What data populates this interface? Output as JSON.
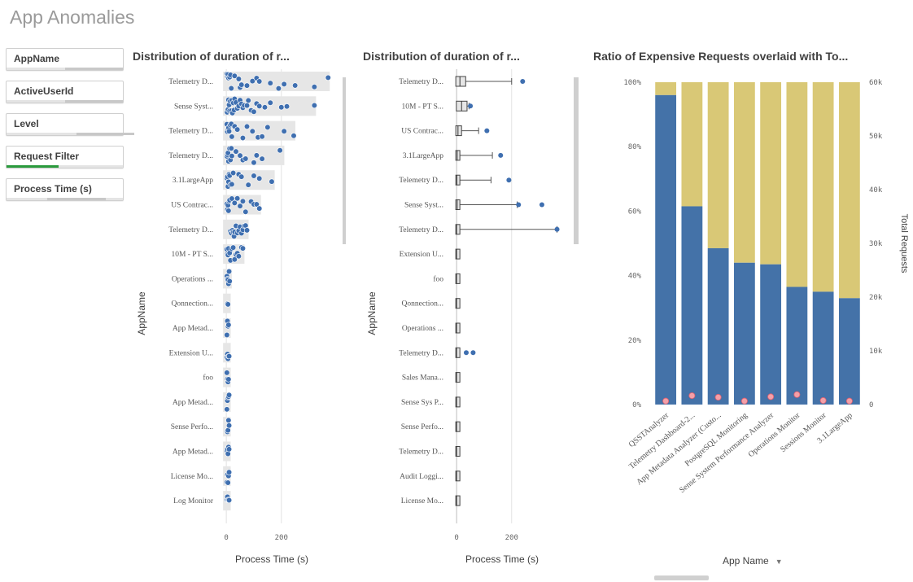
{
  "page": {
    "title": "App Anomalies"
  },
  "filters": [
    {
      "label": "AppName",
      "fill_pct": 0,
      "fill_color": "#cccccc"
    },
    {
      "label": "ActiveUserId",
      "fill_pct": 0,
      "fill_color": "#cccccc"
    },
    {
      "label": "Level",
      "fill_pct": 0,
      "fill_color": "#cccccc"
    },
    {
      "label": "Request Filter",
      "fill_pct": 45,
      "fill_color": "#2a9a3c"
    },
    {
      "label": "Process Time (s)",
      "fill_pct": 0,
      "fill_color": "#cccccc"
    }
  ],
  "charts": {
    "distribution": {
      "title": "Distribution of duration of r...",
      "ylabel": "AppName",
      "xlabel": "Process Time (s)",
      "x_ticks": [
        0,
        200
      ],
      "x_range": [
        -30,
        390
      ],
      "point_color": "#3f6fb0",
      "band_color": "#e6e6e6",
      "rows": [
        {
          "label": "Telemetry D...",
          "max": 370,
          "points": [
            2,
            4,
            6,
            8,
            12,
            15,
            18,
            30,
            45,
            50,
            55,
            75,
            95,
            110,
            120,
            160,
            190,
            210,
            250,
            320,
            370
          ]
        },
        {
          "label": "Sense Syst...",
          "max": 320,
          "points": [
            3,
            6,
            8,
            10,
            12,
            14,
            18,
            20,
            22,
            25,
            28,
            30,
            35,
            40,
            45,
            50,
            55,
            60,
            65,
            75,
            80,
            90,
            100,
            110,
            120,
            140,
            160,
            200,
            220,
            320
          ]
        },
        {
          "label": "Telemetry D...",
          "max": 245,
          "points": [
            2,
            4,
            6,
            8,
            10,
            14,
            18,
            20,
            30,
            40,
            60,
            75,
            95,
            115,
            130,
            150,
            210,
            245
          ]
        },
        {
          "label": "Telemetry D...",
          "max": 205,
          "points": [
            2,
            4,
            6,
            8,
            12,
            15,
            18,
            20,
            35,
            50,
            60,
            70,
            100,
            110,
            130,
            195
          ]
        },
        {
          "label": "3.1LargeApp",
          "max": 170,
          "points": [
            2,
            4,
            6,
            8,
            10,
            12,
            15,
            20,
            25,
            45,
            55,
            80,
            100,
            120,
            165
          ]
        },
        {
          "label": "US Contrac...",
          "max": 120,
          "points": [
            2,
            4,
            6,
            8,
            10,
            12,
            20,
            30,
            40,
            50,
            60,
            70,
            90,
            100,
            110,
            120
          ]
        },
        {
          "label": "Telemetry D...",
          "max": 75,
          "points": [
            15,
            18,
            22,
            25,
            28,
            30,
            35,
            40,
            45,
            50,
            55,
            60,
            65,
            70,
            75
          ]
        },
        {
          "label": "10M - PT S...",
          "max": 60,
          "points": [
            2,
            4,
            6,
            8,
            12,
            15,
            20,
            25,
            30,
            35,
            40,
            45,
            55,
            60
          ]
        },
        {
          "label": "Operations ...",
          "max": 14,
          "points": [
            2,
            4,
            6,
            8,
            10,
            12
          ]
        },
        {
          "label": "Qonnection...",
          "max": 10,
          "points": [
            2,
            4,
            6
          ]
        },
        {
          "label": "App Metad...",
          "max": 10,
          "points": [
            2,
            4,
            6,
            8
          ]
        },
        {
          "label": "Extension U...",
          "max": 10,
          "points": [
            2,
            4,
            6,
            8,
            10
          ]
        },
        {
          "label": "foo",
          "max": 10,
          "points": [
            2,
            4,
            6,
            8
          ]
        },
        {
          "label": "App Metad...",
          "max": 10,
          "points": [
            2,
            4,
            6,
            8,
            10
          ]
        },
        {
          "label": "Sense Perfo...",
          "max": 10,
          "points": [
            2,
            4,
            6,
            8,
            10
          ]
        },
        {
          "label": "App Metad...",
          "max": 10,
          "points": [
            2,
            4,
            6,
            8,
            10
          ]
        },
        {
          "label": "License Mo...",
          "max": 10,
          "points": [
            2,
            4,
            6,
            8,
            10
          ]
        },
        {
          "label": "Log Monitor",
          "max": 10,
          "points": [
            2,
            4,
            6,
            8,
            10
          ]
        }
      ]
    },
    "boxplot": {
      "title": "Distribution of duration of r...",
      "ylabel": "AppName",
      "xlabel": "Process Time (s)",
      "x_ticks": [
        0,
        200
      ],
      "x_range": [
        -30,
        390
      ],
      "point_color": "#3f6fb0",
      "rows": [
        {
          "label": "Telemetry D...",
          "min": 0,
          "q1": 0,
          "median": 12,
          "q3": 30,
          "max": 200,
          "outliers": [
            240
          ]
        },
        {
          "label": "10M - PT S...",
          "min": 0,
          "q1": 2,
          "median": 18,
          "q3": 35,
          "max": 45,
          "outliers": [
            50
          ]
        },
        {
          "label": "US Contrac...",
          "min": 0,
          "q1": 0,
          "median": 5,
          "q3": 15,
          "max": 80,
          "outliers": [
            110
          ]
        },
        {
          "label": "3.1LargeApp",
          "min": 0,
          "q1": 0,
          "median": 2,
          "q3": 5,
          "max": 130,
          "outliers": [
            160
          ]
        },
        {
          "label": "Telemetry D...",
          "min": 0,
          "q1": 0,
          "median": 1,
          "q3": 3,
          "max": 125,
          "outliers": [
            190
          ]
        },
        {
          "label": "Sense Syst...",
          "min": 0,
          "q1": 0,
          "median": 2,
          "q3": 8,
          "max": 220,
          "outliers": [
            225,
            310
          ]
        },
        {
          "label": "Telemetry D...",
          "min": 0,
          "q1": 0,
          "median": 0,
          "q3": 2,
          "max": 365,
          "outliers": [
            365
          ]
        },
        {
          "label": "Extension U...",
          "min": 0,
          "q1": 0,
          "median": 0,
          "q3": 1,
          "max": 5,
          "outliers": []
        },
        {
          "label": "foo",
          "min": 0,
          "q1": 0,
          "median": 0,
          "q3": 1,
          "max": 4,
          "outliers": []
        },
        {
          "label": "Qonnection...",
          "min": 0,
          "q1": 0,
          "median": 0,
          "q3": 1,
          "max": 5,
          "outliers": []
        },
        {
          "label": "Operations ...",
          "min": 0,
          "q1": 0,
          "median": 0,
          "q3": 1,
          "max": 6,
          "outliers": []
        },
        {
          "label": "Telemetry D...",
          "min": 0,
          "q1": 0,
          "median": 0,
          "q3": 2,
          "max": 10,
          "outliers": [
            35,
            60
          ]
        },
        {
          "label": "Sales Mana...",
          "min": 0,
          "q1": 0,
          "median": 0,
          "q3": 1,
          "max": 4,
          "outliers": []
        },
        {
          "label": "Sense Sys P...",
          "min": 0,
          "q1": 0,
          "median": 0,
          "q3": 1,
          "max": 4,
          "outliers": []
        },
        {
          "label": "Sense Perfo...",
          "min": 0,
          "q1": 0,
          "median": 0,
          "q3": 1,
          "max": 4,
          "outliers": []
        },
        {
          "label": "Telemetry D...",
          "min": 0,
          "q1": 0,
          "median": 0,
          "q3": 1,
          "max": 4,
          "outliers": []
        },
        {
          "label": "Audit Loggi...",
          "min": 0,
          "q1": 0,
          "median": 0,
          "q3": 1,
          "max": 4,
          "outliers": []
        },
        {
          "label": "License Mo...",
          "min": 0,
          "q1": 0,
          "median": 0,
          "q3": 1,
          "max": 4,
          "outliers": []
        }
      ]
    },
    "ratio": {
      "title": "Ratio of Expensive Requests overlaid with To...",
      "ylabel_right": "Total Requests",
      "xlabel": "App Name",
      "left_ticks": [
        "0%",
        "20%",
        "40%",
        "60%",
        "80%",
        "100%"
      ],
      "right_ticks": [
        "0",
        "10k",
        "20k",
        "30k",
        "40k",
        "50k",
        "60k"
      ],
      "expensive_color": "#4472a8",
      "other_color": "#d9c876",
      "marker_color": "#f4a0a8",
      "categories": [
        "QSSTAnalyzer",
        "Telemetry Dashboard-2...",
        "App Metadata Analyzer (Custo...",
        "PostgreSQL Monitoring",
        "Sense System Performance Analyzer",
        "Operations Monitor",
        "Sessions Monitor",
        "3.1LargeApp"
      ],
      "ratio_pct": [
        96,
        61.5,
        48.5,
        44,
        43.5,
        36.5,
        35,
        33
      ],
      "total_requests": [
        200,
        1200,
        900,
        200,
        1000,
        1400,
        300,
        200
      ]
    }
  }
}
